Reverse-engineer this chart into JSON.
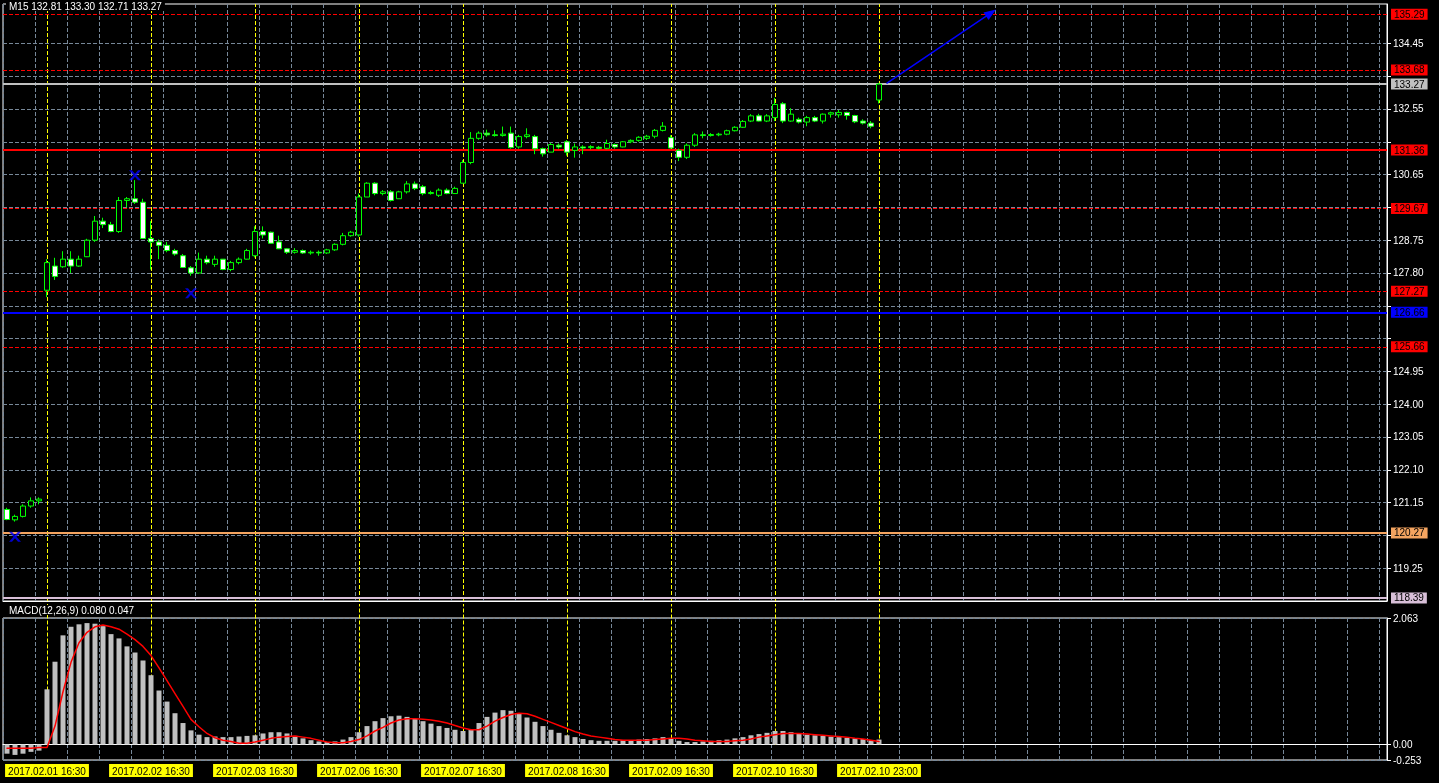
{
  "chart_data": [
    {
      "type": "candlestick",
      "title": "M15 132.81 133.30 132.71 133.27",
      "categories": [
        null,
        null,
        null,
        null,
        null,
        null,
        null,
        null,
        null,
        null,
        null,
        null,
        null,
        null,
        null,
        null,
        null,
        null,
        null,
        null,
        null,
        null,
        null,
        null,
        null,
        null,
        null,
        null,
        null,
        null,
        null,
        null,
        null,
        null,
        null,
        null,
        null,
        null,
        null,
        null,
        null,
        null,
        null,
        null,
        null,
        null,
        null,
        null,
        null,
        null,
        null,
        null,
        null,
        null,
        null,
        null,
        null,
        null,
        null,
        null,
        null,
        null,
        null,
        null,
        null,
        null,
        null,
        null,
        null,
        null,
        null,
        null,
        null,
        null,
        null,
        null,
        null,
        null,
        null,
        null,
        null,
        null,
        null,
        null,
        null,
        null,
        null,
        null,
        null,
        null,
        null,
        null,
        null,
        null,
        null,
        null,
        null,
        null,
        null,
        null,
        null,
        null,
        null,
        null,
        null,
        null,
        null,
        null,
        null,
        null,
        null,
        null,
        null,
        null,
        null,
        null,
        null,
        null,
        null,
        null,
        null,
        null,
        null,
        null,
        null,
        null,
        null,
        null,
        null,
        null,
        null,
        null,
        null,
        null,
        null,
        null,
        null,
        null,
        null,
        null,
        null,
        null,
        null,
        null,
        null,
        null,
        null,
        null,
        null,
        null,
        null,
        null,
        null,
        null,
        null,
        null,
        null,
        null,
        null,
        null,
        null,
        null,
        null,
        null,
        null,
        null,
        null,
        null,
        null,
        null,
        null,
        null,
        null
      ],
      "ohlc": [
        [
          120.95,
          121.0,
          120.64,
          120.66
        ],
        [
          120.65,
          120.8,
          120.6,
          120.75
        ],
        [
          120.75,
          121.1,
          120.72,
          121.05
        ],
        [
          121.05,
          121.3,
          121.0,
          121.2
        ],
        [
          121.2,
          121.3,
          121.1,
          121.25
        ],
        [
          127.3,
          128.2,
          127.1,
          128.1
        ],
        [
          128.0,
          128.24,
          127.6,
          127.7
        ],
        [
          127.98,
          128.43,
          127.95,
          128.2
        ],
        [
          128.2,
          128.43,
          127.8,
          128.0
        ],
        [
          128.0,
          128.3,
          127.98,
          128.2
        ],
        [
          128.27,
          128.79,
          128.26,
          128.75
        ],
        [
          128.75,
          129.45,
          128.7,
          129.3
        ],
        [
          129.3,
          129.4,
          129.1,
          129.2
        ],
        [
          129.2,
          129.28,
          128.98,
          129.0
        ],
        [
          129.0,
          130.0,
          128.96,
          129.9
        ],
        [
          129.9,
          130.0,
          129.7,
          129.95
        ],
        [
          129.95,
          130.49,
          129.8,
          129.85
        ],
        [
          129.85,
          129.95,
          128.8,
          128.8
        ],
        [
          128.8,
          129.3,
          127.9,
          128.7
        ],
        [
          128.7,
          128.77,
          128.2,
          128.6
        ],
        [
          128.6,
          128.7,
          128.4,
          128.45
        ],
        [
          128.45,
          128.5,
          128.3,
          128.35
        ],
        [
          128.3,
          128.35,
          127.95,
          127.96
        ],
        [
          127.95,
          128.0,
          127.72,
          127.8
        ],
        [
          127.8,
          128.39,
          127.78,
          128.2
        ],
        [
          128.2,
          128.3,
          128.05,
          128.1
        ],
        [
          128.05,
          128.3,
          127.98,
          128.2
        ],
        [
          128.2,
          128.2,
          127.88,
          127.9
        ],
        [
          127.9,
          128.15,
          127.85,
          128.1
        ],
        [
          128.1,
          128.25,
          128.05,
          128.2
        ],
        [
          128.2,
          128.5,
          128.19,
          128.45
        ],
        [
          128.3,
          129.15,
          128.25,
          129.0
        ],
        [
          129.0,
          129.15,
          128.8,
          128.9
        ],
        [
          128.98,
          129.0,
          128.65,
          128.66
        ],
        [
          128.7,
          128.88,
          128.5,
          128.5
        ],
        [
          128.5,
          128.52,
          128.35,
          128.4
        ],
        [
          128.4,
          128.52,
          128.36,
          128.45
        ],
        [
          128.45,
          128.48,
          128.35,
          128.38
        ],
        [
          128.38,
          128.45,
          128.33,
          128.4
        ],
        [
          128.4,
          128.45,
          128.3,
          128.38
        ],
        [
          128.38,
          128.5,
          128.35,
          128.47
        ],
        [
          128.47,
          128.66,
          128.44,
          128.63
        ],
        [
          128.63,
          128.96,
          128.6,
          128.88
        ],
        [
          128.88,
          129.02,
          128.85,
          128.98
        ],
        [
          128.9,
          130.1,
          128.85,
          130.0
        ],
        [
          130.0,
          130.43,
          130.0,
          130.4
        ],
        [
          130.4,
          130.43,
          130.05,
          130.1
        ],
        [
          130.1,
          130.2,
          130.05,
          130.15
        ],
        [
          130.15,
          130.2,
          129.87,
          129.9
        ],
        [
          129.95,
          130.18,
          129.95,
          130.15
        ],
        [
          130.15,
          130.46,
          130.1,
          130.38
        ],
        [
          130.38,
          130.45,
          130.2,
          130.25
        ],
        [
          130.3,
          130.35,
          130.05,
          130.1
        ],
        [
          130.1,
          130.18,
          130.07,
          130.13
        ],
        [
          130.05,
          130.25,
          130.0,
          130.2
        ],
        [
          130.2,
          130.25,
          130.08,
          130.1
        ],
        [
          130.1,
          130.3,
          130.1,
          130.25
        ],
        [
          130.4,
          131.07,
          130.4,
          131.0
        ],
        [
          131.0,
          131.88,
          130.95,
          131.7
        ],
        [
          131.7,
          131.9,
          131.66,
          131.85
        ],
        [
          131.85,
          131.95,
          131.75,
          131.8
        ],
        [
          131.8,
          131.93,
          131.75,
          131.78
        ],
        [
          131.78,
          132.04,
          131.75,
          131.82
        ],
        [
          131.85,
          132.04,
          131.4,
          131.43
        ],
        [
          131.45,
          131.8,
          131.4,
          131.75
        ],
        [
          131.75,
          131.99,
          131.7,
          131.8
        ],
        [
          131.75,
          131.8,
          131.24,
          131.4
        ],
        [
          131.4,
          131.43,
          131.17,
          131.25
        ],
        [
          131.3,
          131.57,
          131.3,
          131.52
        ],
        [
          131.5,
          131.55,
          131.4,
          131.45
        ],
        [
          131.6,
          131.65,
          131.2,
          131.3
        ],
        [
          131.35,
          131.55,
          131.14,
          131.45
        ],
        [
          131.45,
          131.5,
          131.24,
          131.42
        ],
        [
          131.43,
          131.5,
          131.38,
          131.46
        ],
        [
          131.44,
          131.48,
          131.38,
          131.41
        ],
        [
          131.41,
          131.66,
          131.38,
          131.55
        ],
        [
          131.52,
          131.55,
          131.4,
          131.45
        ],
        [
          131.45,
          131.62,
          131.44,
          131.6
        ],
        [
          131.6,
          131.67,
          131.56,
          131.64
        ],
        [
          131.64,
          131.76,
          131.6,
          131.73
        ],
        [
          131.7,
          131.8,
          131.65,
          131.76
        ],
        [
          131.76,
          131.97,
          131.7,
          131.93
        ],
        [
          131.93,
          132.17,
          131.9,
          132.05
        ],
        [
          131.72,
          131.79,
          131.4,
          131.42
        ],
        [
          131.35,
          131.4,
          131.04,
          131.15
        ],
        [
          131.15,
          131.55,
          131.1,
          131.5
        ],
        [
          131.5,
          131.85,
          131.45,
          131.8
        ],
        [
          131.8,
          131.9,
          131.7,
          131.78
        ],
        [
          131.78,
          131.85,
          131.75,
          131.81
        ],
        [
          131.8,
          131.86,
          131.76,
          131.82
        ],
        [
          131.82,
          131.95,
          131.79,
          131.92
        ],
        [
          131.92,
          132.05,
          131.9,
          132.02
        ],
        [
          132.02,
          132.23,
          132.0,
          132.19
        ],
        [
          132.2,
          132.4,
          132.17,
          132.35
        ],
        [
          132.35,
          132.41,
          132.19,
          132.2
        ],
        [
          132.2,
          132.4,
          132.17,
          132.35
        ],
        [
          132.3,
          132.87,
          132.2,
          132.68
        ],
        [
          132.7,
          132.75,
          132.14,
          132.2
        ],
        [
          132.2,
          132.57,
          132.18,
          132.4
        ],
        [
          132.25,
          132.3,
          132.13,
          132.17
        ],
        [
          132.17,
          132.35,
          132.05,
          132.3
        ],
        [
          132.3,
          132.35,
          132.17,
          132.2
        ],
        [
          132.2,
          132.42,
          132.13,
          132.4
        ],
        [
          132.4,
          132.47,
          132.3,
          132.44
        ],
        [
          132.38,
          132.52,
          132.3,
          132.45
        ],
        [
          132.45,
          132.47,
          132.24,
          132.36
        ],
        [
          132.36,
          132.38,
          132.14,
          132.18
        ],
        [
          132.2,
          132.25,
          132.1,
          132.14
        ],
        [
          132.14,
          132.2,
          131.99,
          132.05
        ],
        [
          132.81,
          133.3,
          132.71,
          133.27
        ],
        null,
        null,
        null,
        null,
        null,
        null,
        null,
        null,
        null,
        null,
        null,
        null,
        null,
        null,
        null,
        null,
        null,
        null,
        null,
        null,
        null,
        null,
        null,
        null,
        null,
        null,
        null,
        null,
        null,
        null,
        null,
        null,
        null,
        null,
        null,
        null,
        null,
        null,
        null,
        null,
        null,
        null,
        null,
        null,
        null,
        null,
        null,
        null,
        null,
        null,
        null,
        null,
        null,
        null,
        null,
        null,
        null,
        null,
        null,
        null,
        null,
        null,
        null
      ],
      "color": "#00ff00",
      "colors": [
        "#ffffff",
        "#000000",
        "#000000",
        "#000000",
        "#000000",
        "#000000",
        "#ffffff",
        "#000000",
        "#ffffff",
        "#000000",
        "#000000",
        "#000000",
        "#ffffff",
        "#ffffff",
        "#000000",
        "#000000",
        "#ffffff",
        "#ffffff",
        "#ffffff",
        "#ffffff",
        "#ffffff",
        "#ffffff",
        "#ffffff",
        "#ffffff",
        "#000000",
        "#ffffff",
        "#000000",
        "#ffffff",
        "#000000",
        "#000000",
        "#000000",
        "#000000",
        "#ffffff",
        "#ffffff",
        "#ffffff",
        "#ffffff",
        "#000000",
        "#ffffff",
        "#000000",
        "#ffffff",
        "#000000",
        "#000000",
        "#000000",
        "#000000",
        "#000000",
        "#000000",
        "#ffffff",
        "#000000",
        "#ffffff",
        "#000000",
        "#000000",
        "#ffffff",
        "#ffffff",
        "#000000",
        "#000000",
        "#ffffff",
        "#000000",
        "#000000",
        "#000000",
        "#000000",
        "#ffffff",
        "#ffffff",
        "#000000",
        "#ffffff",
        "#000000",
        "#000000",
        "#ffffff",
        "#ffffff",
        "#000000",
        "#ffffff",
        "#ffffff",
        "#000000",
        "#ffffff",
        "#000000",
        "#ffffff",
        "#000000",
        "#ffffff",
        "#000000",
        "#000000",
        "#000000",
        "#000000",
        "#000000",
        "#000000",
        "#ffffff",
        "#ffffff",
        "#000000",
        "#000000",
        "#ffffff",
        "#000000",
        "#000000",
        "#000000",
        "#000000",
        "#000000",
        "#000000",
        "#ffffff",
        "#000000",
        "#000000",
        "#ffffff",
        "#000000",
        "#ffffff",
        "#000000",
        "#ffffff",
        "#000000",
        "#000000",
        "#000000",
        "#ffffff",
        "#ffffff",
        "#ffffff",
        "#ffffff",
        "#000000",
        null,
        null,
        null,
        null,
        null,
        null,
        null,
        null,
        null,
        null,
        null,
        null,
        null,
        null,
        null,
        null,
        null,
        null,
        null,
        null,
        null,
        null,
        null,
        null,
        null,
        null,
        null,
        null,
        null,
        null,
        null,
        null,
        null,
        null,
        null,
        null,
        null,
        null,
        null,
        null,
        null,
        null,
        null,
        null,
        null,
        null,
        null,
        null,
        null,
        null,
        null,
        null,
        null,
        null,
        null,
        null,
        null,
        null,
        null,
        null,
        null,
        null,
        null
      ],
      "series": [
        {
          "type": "scatter",
          "color": "#0000ff",
          "marker": "cross",
          "values": [
            null,
            120.16,
            null,
            null,
            null,
            null,
            null,
            null,
            null,
            null,
            null,
            null,
            null,
            null,
            null,
            null,
            130.63,
            null,
            null,
            null,
            null,
            null,
            null,
            127.21,
            null,
            null,
            null,
            null,
            null,
            null,
            null,
            null,
            null,
            null,
            null,
            null,
            null,
            null,
            null,
            null,
            null,
            null,
            null,
            null,
            null,
            null,
            null,
            null,
            null,
            null,
            null,
            null,
            null,
            null,
            null,
            null,
            null,
            null,
            null,
            null,
            null,
            null,
            null,
            null,
            null,
            null,
            null,
            null,
            null,
            null,
            null,
            null,
            null,
            null,
            null,
            null,
            null,
            null,
            null,
            null,
            null,
            null,
            null,
            null,
            null,
            null,
            null,
            null,
            null,
            null,
            null,
            null,
            null,
            null,
            null,
            null,
            null,
            null,
            null,
            null,
            null,
            null,
            null,
            null,
            null,
            null,
            null,
            null,
            null,
            null,
            null,
            null,
            null,
            null,
            null,
            null,
            null,
            null,
            null,
            null,
            null,
            null,
            null,
            null,
            null,
            null,
            null,
            null,
            null,
            null,
            null,
            null,
            null,
            null,
            null,
            null,
            null,
            null,
            null,
            null,
            null,
            null,
            null,
            null,
            null,
            null,
            null,
            null,
            null,
            null,
            null,
            null,
            null,
            null,
            null,
            null,
            null,
            null,
            null,
            null,
            null,
            null,
            null,
            null,
            null,
            null,
            null,
            null,
            null,
            null,
            null,
            null,
            null
          ]
        },
        {
          "type": "line",
          "color": "#0000ff",
          "marker": "triangle",
          "values": [
            null,
            null,
            null,
            null,
            null,
            null,
            null,
            null,
            null,
            null,
            null,
            null,
            null,
            null,
            null,
            null,
            null,
            null,
            null,
            null,
            null,
            null,
            null,
            null,
            null,
            null,
            null,
            null,
            null,
            null,
            null,
            null,
            null,
            null,
            null,
            null,
            null,
            null,
            null,
            null,
            null,
            null,
            null,
            null,
            null,
            null,
            null,
            null,
            null,
            null,
            null,
            null,
            null,
            null,
            null,
            null,
            null,
            null,
            null,
            null,
            null,
            null,
            null,
            null,
            null,
            null,
            null,
            null,
            null,
            null,
            null,
            null,
            null,
            null,
            null,
            null,
            null,
            null,
            null,
            null,
            null,
            null,
            null,
            null,
            null,
            null,
            null,
            null,
            null,
            null,
            null,
            null,
            null,
            null,
            null,
            null,
            null,
            null,
            null,
            null,
            null,
            null,
            null,
            null,
            null,
            null,
            null,
            null,
            null,
            null,
            133.3,
            null,
            null,
            null,
            null,
            null,
            null,
            null,
            null,
            null,
            null,
            null,
            null,
            135.33,
            null,
            null,
            null,
            null,
            null,
            null,
            null,
            null,
            null,
            null,
            null,
            null,
            null,
            null,
            null,
            null,
            null,
            null,
            null,
            null,
            null,
            null,
            null,
            null,
            null,
            null,
            null,
            null,
            null,
            null,
            null,
            null,
            null,
            null,
            null,
            null,
            null,
            null,
            null,
            null,
            null,
            null,
            null,
            null,
            null,
            null,
            null,
            null,
            null
          ]
        }
      ],
      "ylim": [
        118.3,
        135.59
      ],
      "yticks": [
        119.25,
        {
          "value": 120.2,
          "label": null
        },
        121.15,
        {
          "value": 122.1,
          "label": "122.10"
        },
        123.05,
        {
          "value": 124,
          "label": "124.00"
        },
        124.95,
        {
          "value": 125.9,
          "label": null
        },
        {
          "value": 126.85,
          "label": null
        },
        {
          "value": 127.8,
          "label": "127.80"
        },
        128.75,
        {
          "value": 129.7,
          "label": null
        },
        130.65,
        {
          "value": 131.6,
          "label": null
        },
        132.55,
        {
          "value": 133.5,
          "label": null
        },
        134.45
      ],
      "ref_lines": [
        {
          "axis": "y",
          "value": 135.29,
          "label": "135.29",
          "color": "#ff0000",
          "line_style": "dashed"
        },
        {
          "axis": "y",
          "value": 133.68,
          "label": "133.68",
          "color": "#ff0000",
          "line_style": "dashed"
        },
        {
          "axis": "y",
          "value": 133.27,
          "label": "133.27",
          "color": "#c0c0c0",
          "line_style": "solid"
        },
        {
          "axis": "y",
          "value": 131.36,
          "label": "131.36",
          "color": "#ff0000",
          "line_style": "solid"
        },
        {
          "axis": "y",
          "value": 129.67,
          "label": "129.67",
          "color": "#ff0000",
          "line_style": "dashed"
        },
        {
          "axis": "y",
          "value": 127.27,
          "label": "127.27",
          "color": "#ff0000",
          "line_style": "dashed"
        },
        {
          "axis": "y",
          "value": 126.66,
          "label": "126.66",
          "color": "#0000ff",
          "line_style": "solid"
        },
        {
          "axis": "y",
          "value": 125.66,
          "label": "125.66",
          "color": "#ff0000",
          "line_style": "dashed"
        },
        {
          "axis": "y",
          "value": 120.27,
          "label": "120.27",
          "color": "#f4a460",
          "line_style": "solid"
        },
        {
          "axis": "y",
          "value": 118.39,
          "label": "118.39",
          "color": "#d8bfd8",
          "line_style": "solid"
        }
      ],
      "grid": true,
      "tick_labels": "y"
    },
    {
      "type": "bar",
      "title": "MACD(12,26,9) 0.080 0.047",
      "categories": [
        null,
        null,
        null,
        null,
        null,
        "2017.02.01 16:30",
        null,
        null,
        null,
        null,
        null,
        null,
        null,
        null,
        null,
        null,
        null,
        null,
        "2017.02.02 16:30",
        null,
        null,
        null,
        null,
        null,
        null,
        null,
        null,
        null,
        null,
        null,
        null,
        "2017.02.03 16:30",
        null,
        null,
        null,
        null,
        null,
        null,
        null,
        null,
        null,
        null,
        null,
        null,
        "2017.02.06 16:30",
        null,
        null,
        null,
        null,
        null,
        null,
        null,
        null,
        null,
        null,
        null,
        null,
        "2017.02.07 16:30",
        null,
        null,
        null,
        null,
        null,
        null,
        null,
        null,
        null,
        null,
        null,
        null,
        "2017.02.08 16:30",
        null,
        null,
        null,
        null,
        null,
        null,
        null,
        null,
        null,
        null,
        null,
        null,
        "2017.02.09 16:30",
        null,
        null,
        null,
        null,
        null,
        null,
        null,
        null,
        null,
        null,
        null,
        null,
        "2017.02.10 16:30",
        null,
        null,
        null,
        null,
        null,
        null,
        null,
        null,
        null,
        null,
        null,
        null,
        "2017.02.10 23:00",
        null,
        null,
        null,
        null,
        null,
        null,
        null,
        null,
        null,
        null,
        null,
        null,
        null,
        null,
        null,
        null,
        null,
        null,
        null,
        null,
        null,
        null,
        null,
        null,
        null,
        null,
        null,
        null,
        null,
        null,
        null,
        null,
        null,
        null,
        null,
        null,
        null,
        null,
        null,
        null,
        null,
        null,
        null,
        null,
        null,
        null,
        null,
        null,
        null,
        null,
        null,
        null,
        null,
        null,
        null,
        null,
        null,
        null,
        null,
        null,
        null,
        null,
        null
      ],
      "series": [
        {
          "color": "#c0c0c0",
          "values": [
            -0.15,
            -0.17,
            -0.15,
            -0.12,
            -0.1,
            0.9,
            1.35,
            1.78,
            1.92,
            1.96,
            1.98,
            1.97,
            1.93,
            1.8,
            1.73,
            1.6,
            1.5,
            1.37,
            1.13,
            0.88,
            0.7,
            0.51,
            0.35,
            0.23,
            0.16,
            0.12,
            0.13,
            0.12,
            0.12,
            0.13,
            0.14,
            0.15,
            0.18,
            0.2,
            0.2,
            0.18,
            0.14,
            0.1,
            0.07,
            0.05,
            0.04,
            0.05,
            0.08,
            0.12,
            0.2,
            0.3,
            0.38,
            0.43,
            0.46,
            0.47,
            0.45,
            0.42,
            0.38,
            0.34,
            0.3,
            0.27,
            0.24,
            0.22,
            0.24,
            0.35,
            0.45,
            0.52,
            0.56,
            0.55,
            0.5,
            0.44,
            0.37,
            0.3,
            0.24,
            0.19,
            0.15,
            0.12,
            0.09,
            0.07,
            0.06,
            0.06,
            0.06,
            0.07,
            0.07,
            0.08,
            0.09,
            0.1,
            0.12,
            0.1,
            0.06,
            0.04,
            0.04,
            0.05,
            0.06,
            0.07,
            0.08,
            0.1,
            0.12,
            0.15,
            0.17,
            0.19,
            0.22,
            0.22,
            0.2,
            0.18,
            0.16,
            0.15,
            0.14,
            0.13,
            0.12,
            0.11,
            0.1,
            0.09,
            0.07,
            0.08,
            null,
            null,
            null,
            null,
            null,
            null,
            null,
            null,
            null,
            null,
            null,
            null,
            null,
            null,
            null,
            null,
            null,
            null,
            null,
            null,
            null,
            null,
            null,
            null,
            null,
            null,
            null,
            null,
            null,
            null,
            null,
            null,
            null,
            null,
            null,
            null,
            null,
            null,
            null,
            null,
            null,
            null,
            null,
            null,
            null,
            null,
            null,
            null,
            null,
            null,
            null,
            null,
            null,
            null,
            null,
            null,
            null,
            null,
            null,
            null,
            null,
            null,
            null
          ]
        },
        {
          "type": "line",
          "color": "#ff0000",
          "marker": "none",
          "values": [
            -0.06,
            -0.06,
            -0.06,
            -0.06,
            -0.05,
            -0.05,
            0.3,
            0.86,
            1.34,
            1.66,
            1.83,
            1.92,
            1.95,
            1.92,
            1.88,
            1.8,
            1.71,
            1.6,
            1.45,
            1.25,
            1.04,
            0.83,
            0.62,
            0.41,
            0.29,
            0.18,
            0.11,
            0.07,
            0.05,
            0.02,
            0.02,
            0.04,
            0.07,
            0.1,
            0.12,
            0.13,
            0.14,
            0.12,
            0.1,
            0.07,
            0.04,
            0.03,
            0.03,
            0.05,
            0.08,
            0.14,
            0.22,
            0.28,
            0.35,
            0.4,
            0.42,
            0.42,
            0.41,
            0.4,
            0.38,
            0.35,
            0.31,
            0.27,
            0.24,
            0.24,
            0.3,
            0.38,
            0.44,
            0.49,
            0.51,
            0.5,
            0.46,
            0.41,
            0.36,
            0.31,
            0.26,
            0.21,
            0.17,
            0.14,
            0.12,
            0.1,
            0.08,
            0.07,
            0.07,
            0.07,
            0.07,
            0.08,
            0.09,
            0.1,
            0.1,
            0.09,
            0.07,
            0.06,
            0.05,
            0.05,
            0.05,
            0.06,
            0.07,
            0.09,
            0.12,
            0.14,
            0.16,
            0.18,
            0.18,
            0.18,
            0.17,
            0.16,
            0.15,
            0.14,
            0.13,
            0.12,
            0.1,
            0.09,
            0.07,
            0.047,
            null,
            null,
            null,
            null,
            null,
            null,
            null,
            null,
            null,
            null,
            null,
            null,
            null,
            null,
            null,
            null,
            null,
            null,
            null,
            null,
            null,
            null,
            null,
            null,
            null,
            null,
            null,
            null,
            null,
            null,
            null,
            null,
            null,
            null,
            null,
            null,
            null,
            null,
            null,
            null,
            null,
            null,
            null,
            null,
            null,
            null,
            null,
            null,
            null,
            null,
            null,
            null,
            null,
            null,
            null,
            null,
            null,
            null,
            null,
            null,
            null,
            null,
            null
          ]
        }
      ],
      "ylim": [
        -0.253,
        2.063
      ],
      "yticks": [
        -0.253,
        {
          "value": 0,
          "label": "0.00"
        },
        2.063
      ],
      "grid": true
    }
  ]
}
